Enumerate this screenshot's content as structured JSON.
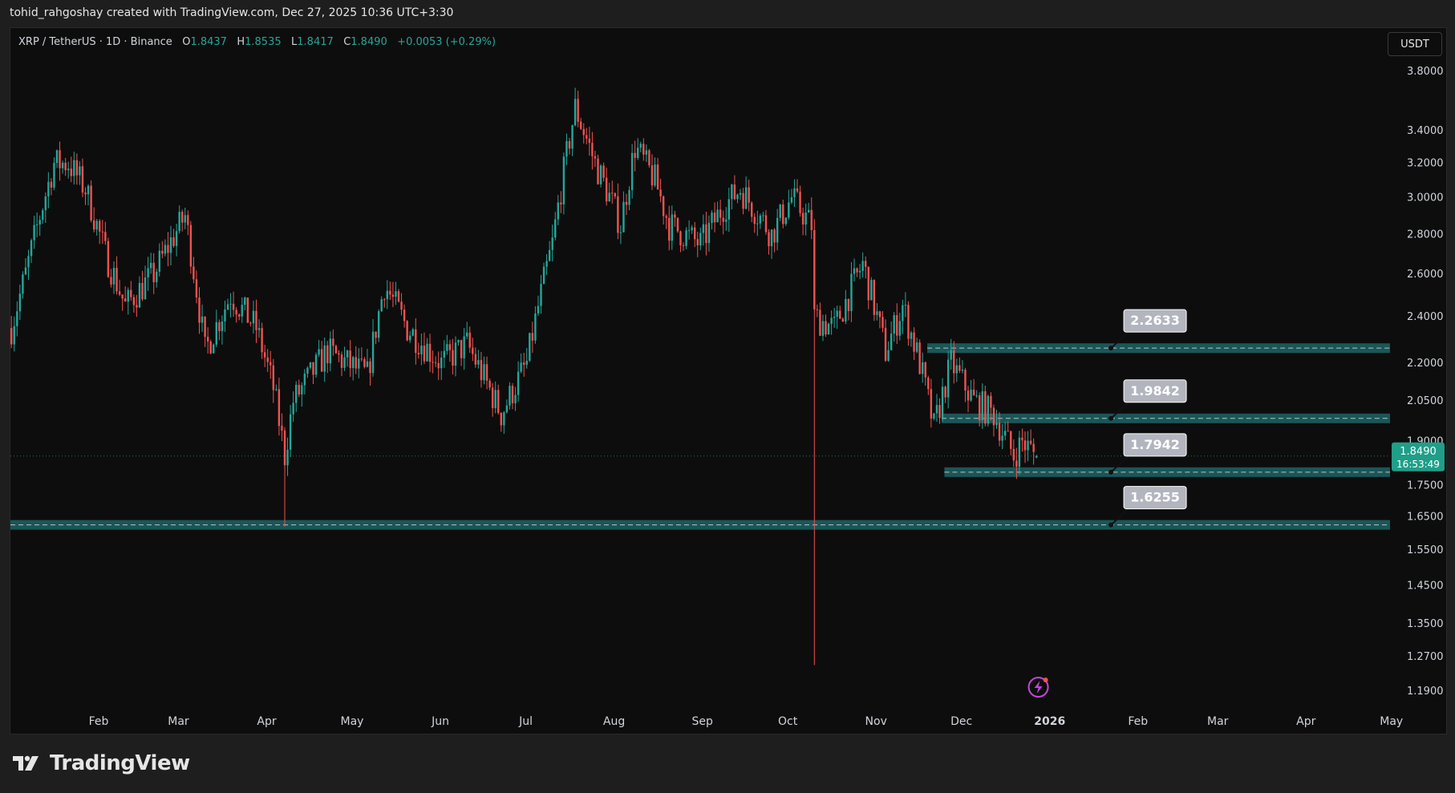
{
  "header": {
    "attribution": "tohid_rahgoshay created with TradingView.com, Dec 27, 2025 10:36 UTC+3:30"
  },
  "legend": {
    "symbol": "XRP / TetherUS · 1D · Binance",
    "open_label": "O",
    "open": "1.8437",
    "high_label": "H",
    "high": "1.8535",
    "low_label": "L",
    "low": "1.8417",
    "close_label": "C",
    "close": "1.8490",
    "change": "+0.0053 (+0.29%)"
  },
  "currency_button": "USDT",
  "brand": {
    "name": "TradingView"
  },
  "colors": {
    "background": "#0d0d0d",
    "up": "#26a69a",
    "down": "#ef5350",
    "zone_fill": "#1f6f72",
    "label_bg": "#b2b5be",
    "accent_icon": "#c047d9"
  },
  "icons": [
    "tradingview-logo-icon",
    "lightning-event-icon"
  ],
  "chart_data": {
    "type": "candlestick",
    "scale": "log",
    "xlabel": "",
    "ylabel": "",
    "x_tick_labels": [
      "Feb",
      "Mar",
      "Apr",
      "May",
      "Jun",
      "Jul",
      "Aug",
      "Sep",
      "Oct",
      "Nov",
      "Dec",
      "2026",
      "Feb",
      "Mar",
      "Apr",
      "May"
    ],
    "y_tick_labels": [
      "3.8000",
      "3.4000",
      "3.2000",
      "3.0000",
      "2.8000",
      "2.6000",
      "2.4000",
      "2.2000",
      "2.0500",
      "1.9000",
      "1.7500",
      "1.6500",
      "1.5500",
      "1.4500",
      "1.3500",
      "1.2700",
      "1.1900"
    ],
    "ylim": [
      1.15,
      4.0
    ],
    "current_price": {
      "value": "1.8490",
      "countdown": "16:53:49"
    },
    "zones": [
      {
        "label": "2.2633",
        "value": 2.2633,
        "start": "2025-11-19"
      },
      {
        "label": "1.9842",
        "value": 1.9842,
        "start": "2025-11-24"
      },
      {
        "label": "1.7942",
        "value": 1.7942,
        "start": "2025-11-25"
      },
      {
        "label": "1.6255",
        "value": 1.6255,
        "start": "2025-01-01"
      }
    ],
    "price_path": [
      [
        "2025-01-01",
        2.35
      ],
      [
        "2025-01-06",
        2.6
      ],
      [
        "2025-01-16",
        3.2
      ],
      [
        "2025-01-21",
        3.2
      ],
      [
        "2025-01-27",
        3.05
      ],
      [
        "2025-02-03",
        2.7
      ],
      [
        "2025-02-10",
        2.45
      ],
      [
        "2025-02-20",
        2.6
      ],
      [
        "2025-03-03",
        2.9
      ],
      [
        "2025-03-10",
        2.25
      ],
      [
        "2025-03-19",
        2.5
      ],
      [
        "2025-03-28",
        2.35
      ],
      [
        "2025-04-03",
        2.1
      ],
      [
        "2025-04-07",
        1.85
      ],
      [
        "2025-04-10",
        2.05
      ],
      [
        "2025-04-22",
        2.25
      ],
      [
        "2025-05-06",
        2.15
      ],
      [
        "2025-05-12",
        2.55
      ],
      [
        "2025-05-20",
        2.35
      ],
      [
        "2025-06-01",
        2.2
      ],
      [
        "2025-06-10",
        2.28
      ],
      [
        "2025-06-22",
        2.0
      ],
      [
        "2025-07-01",
        2.2
      ],
      [
        "2025-07-10",
        2.75
      ],
      [
        "2025-07-18",
        3.55
      ],
      [
        "2025-07-25",
        3.2
      ],
      [
        "2025-08-03",
        2.85
      ],
      [
        "2025-08-08",
        3.3
      ],
      [
        "2025-08-15",
        3.1
      ],
      [
        "2025-08-20",
        2.85
      ],
      [
        "2025-08-31",
        2.75
      ],
      [
        "2025-09-08",
        2.95
      ],
      [
        "2025-09-14",
        3.05
      ],
      [
        "2025-09-25",
        2.8
      ],
      [
        "2025-10-02",
        3.0
      ],
      [
        "2025-10-09",
        2.85
      ],
      [
        "2025-10-10",
        2.4
      ],
      [
        "2025-10-17",
        2.35
      ],
      [
        "2025-10-27",
        2.65
      ],
      [
        "2025-11-04",
        2.25
      ],
      [
        "2025-11-10",
        2.45
      ],
      [
        "2025-11-16",
        2.2
      ],
      [
        "2025-11-21",
        1.95
      ],
      [
        "2025-11-27",
        2.2
      ],
      [
        "2025-12-05",
        2.05
      ],
      [
        "2025-12-12",
        2.0
      ],
      [
        "2025-12-19",
        1.85
      ],
      [
        "2025-12-22",
        1.9
      ],
      [
        "2025-12-27",
        1.849
      ]
    ],
    "wicks": [
      {
        "date": "2025-10-10",
        "low": 1.25
      },
      {
        "date": "2025-04-07",
        "low": 1.62
      }
    ]
  }
}
